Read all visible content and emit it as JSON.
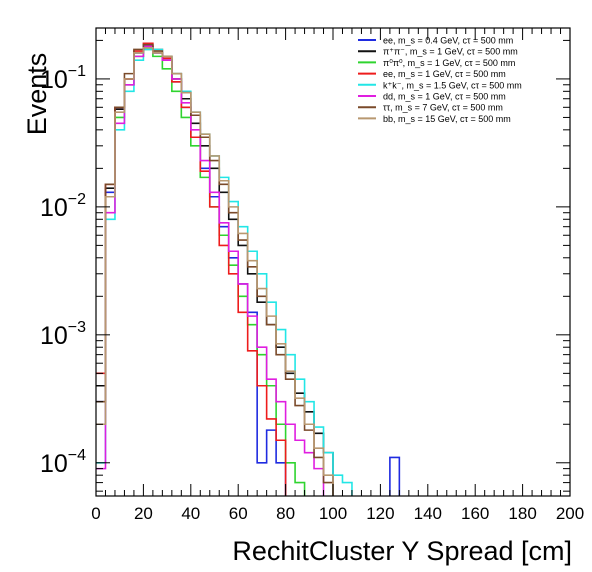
{
  "chart_data": {
    "type": "line",
    "subtype": "step-histogram",
    "xlabel": "RechitCluster Y Spread [cm]",
    "ylabel": "Events",
    "xlim": [
      0,
      200
    ],
    "ylim": [
      5.5e-05,
      0.25
    ],
    "yscale": "log",
    "x_ticks": [
      0,
      20,
      40,
      60,
      80,
      100,
      120,
      140,
      160,
      180,
      200
    ],
    "y_ticks": [
      {
        "value": 0.0001,
        "base": "10",
        "exp": "−4"
      },
      {
        "value": 0.001,
        "base": "10",
        "exp": "−3"
      },
      {
        "value": 0.01,
        "base": "10",
        "exp": "−2"
      },
      {
        "value": 0.1,
        "base": "10",
        "exp": "−1"
      }
    ],
    "bin_width": 4,
    "bin_start": 0,
    "legend_position": "top-right",
    "series": [
      {
        "name": "ee, m_s = 0.4 GeV, cτ = 500 mm",
        "color": "#1f2be0",
        "values": [
          0.0003,
          0.013,
          0.06,
          0.1,
          0.16,
          0.18,
          0.16,
          0.14,
          0.095,
          0.06,
          0.035,
          0.02,
          0.012,
          0.007,
          0.004,
          0.0025,
          0.0015,
          0.0001,
          0.00018,
          0.0001,
          0.0,
          0.0,
          0.0,
          0.0,
          0.0,
          0.0,
          0.0,
          0.0,
          0.0,
          0.0,
          0.0,
          0.00011,
          0.0
        ]
      },
      {
        "name": "π⁺π⁻, m_s = 1 GeV, cτ = 500 mm",
        "color": "#111111",
        "values": [
          0.0004,
          0.014,
          0.058,
          0.1,
          0.16,
          0.18,
          0.16,
          0.14,
          0.1,
          0.07,
          0.045,
          0.03,
          0.02,
          0.013,
          0.008,
          0.005,
          0.003,
          0.0018,
          0.0012,
          0.0008,
          0.0005,
          0.00035,
          0.00025,
          0.00017,
          0.00012,
          0.0,
          0.0,
          0.0,
          0.0,
          0.0,
          0.0,
          0.0,
          0.0
        ]
      },
      {
        "name": "π⁰π⁰, m_s = 1 GeV, cτ = 500 mm",
        "color": "#2fd42f",
        "values": [
          0.0002,
          0.012,
          0.05,
          0.09,
          0.15,
          0.17,
          0.15,
          0.12,
          0.08,
          0.05,
          0.03,
          0.017,
          0.01,
          0.006,
          0.0035,
          0.002,
          0.0012,
          0.0007,
          0.0004,
          0.0002,
          0.0001,
          7e-05,
          0.0,
          0.0,
          0.0,
          0.0,
          0.0,
          0.0,
          0.0,
          0.0,
          0.0,
          0.0,
          0.0
        ]
      },
      {
        "name": "ee, m_s = 1 GeV, cτ = 500 mm",
        "color": "#ee1c1c",
        "values": [
          0.0005,
          0.015,
          0.06,
          0.1,
          0.165,
          0.19,
          0.17,
          0.145,
          0.095,
          0.06,
          0.035,
          0.019,
          0.01,
          0.005,
          0.003,
          0.0015,
          0.00075,
          0.0004,
          0.00022,
          0.00015,
          0.0,
          0.0,
          0.0,
          0.0,
          0.0,
          0.0,
          0.0,
          0.0,
          0.0,
          0.0,
          0.0,
          0.0,
          0.0
        ]
      },
      {
        "name": "k⁺k⁻, m_s = 1.5 GeV, cτ = 500 mm",
        "color": "#22e6e6",
        "values": [
          0.0001,
          0.008,
          0.04,
          0.08,
          0.14,
          0.17,
          0.17,
          0.15,
          0.11,
          0.08,
          0.055,
          0.037,
          0.025,
          0.017,
          0.011,
          0.007,
          0.0045,
          0.003,
          0.0018,
          0.0011,
          0.0007,
          0.00045,
          0.0003,
          0.00019,
          0.00012,
          8e-05,
          7e-05,
          0.0,
          0.0,
          0.0,
          0.0,
          0.0,
          0.0
        ]
      },
      {
        "name": "dd, m_s = 1 GeV, cτ = 500 mm",
        "color": "#e01ee0",
        "values": [
          9e-05,
          0.009,
          0.045,
          0.09,
          0.15,
          0.18,
          0.16,
          0.14,
          0.1,
          0.065,
          0.04,
          0.023,
          0.013,
          0.0075,
          0.0045,
          0.0025,
          0.0014,
          0.0008,
          0.00045,
          0.0003,
          0.0002,
          0.00015,
          0.00012,
          9e-05,
          0.0,
          0.0,
          0.0,
          0.0,
          0.0,
          0.0,
          0.0,
          0.0,
          0.0
        ]
      },
      {
        "name": "ττ, m_s = 7 GeV, cτ = 500 mm",
        "color": "#7a4a2a",
        "values": [
          0.0003,
          0.015,
          0.06,
          0.11,
          0.17,
          0.185,
          0.165,
          0.15,
          0.11,
          0.078,
          0.052,
          0.035,
          0.023,
          0.015,
          0.009,
          0.0055,
          0.0034,
          0.002,
          0.0012,
          0.0007,
          0.00045,
          0.00028,
          0.00018,
          0.00011,
          7e-05,
          0.0,
          0.0,
          0.0,
          0.0,
          0.0,
          0.0,
          0.0,
          0.0
        ]
      },
      {
        "name": "bb, m_s = 15 GeV, cτ = 500 mm",
        "color": "#b89870",
        "values": [
          0.0002,
          0.012,
          0.055,
          0.1,
          0.16,
          0.175,
          0.16,
          0.15,
          0.11,
          0.078,
          0.055,
          0.037,
          0.025,
          0.016,
          0.01,
          0.0062,
          0.0038,
          0.0023,
          0.0014,
          0.00085,
          0.00052,
          0.00032,
          0.0002,
          0.00013,
          8e-05,
          0.0,
          0.0,
          0.0,
          0.0,
          0.0,
          0.0,
          0.0,
          0.0
        ]
      }
    ]
  }
}
